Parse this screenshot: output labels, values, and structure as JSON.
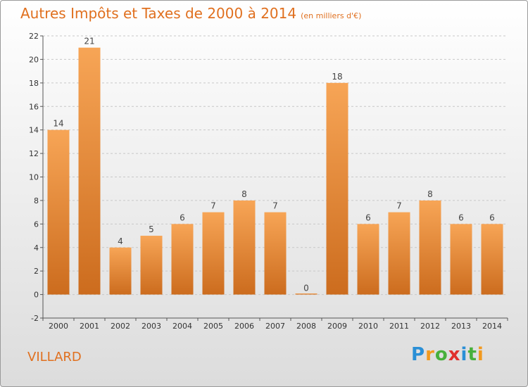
{
  "title": "Autres Impôts et Taxes de 2000 à 2014",
  "subtitle": "(en milliers d'€)",
  "commune": "VILLARD",
  "logo": {
    "letters": [
      "P",
      "r",
      "o",
      "x",
      "i",
      "t",
      "i"
    ],
    "colors": [
      "#2a8fd6",
      "#f29a1f",
      "#47b03c",
      "#e0302c",
      "#2a8fd6",
      "#47b03c",
      "#f29a1f"
    ]
  },
  "colors": {
    "bar_top": "#f7a556",
    "bar_bottom": "#cc6c1e",
    "title": "#e0701f"
  },
  "chart_data": {
    "type": "bar",
    "title": "Autres Impôts et Taxes de 2000 à 2014",
    "subtitle": "(en milliers d'€)",
    "xlabel": "",
    "ylabel": "",
    "categories": [
      "2000",
      "2001",
      "2002",
      "2003",
      "2004",
      "2005",
      "2006",
      "2007",
      "2008",
      "2009",
      "2010",
      "2011",
      "2012",
      "2013",
      "2014"
    ],
    "values": [
      14,
      21,
      4,
      5,
      6,
      7,
      8,
      7,
      0,
      18,
      6,
      7,
      8,
      6,
      6
    ],
    "ylim": [
      -2,
      22
    ],
    "yticks": [
      -2,
      0,
      2,
      4,
      6,
      8,
      10,
      12,
      14,
      16,
      18,
      20,
      22
    ],
    "grid": true,
    "legend": "none"
  }
}
